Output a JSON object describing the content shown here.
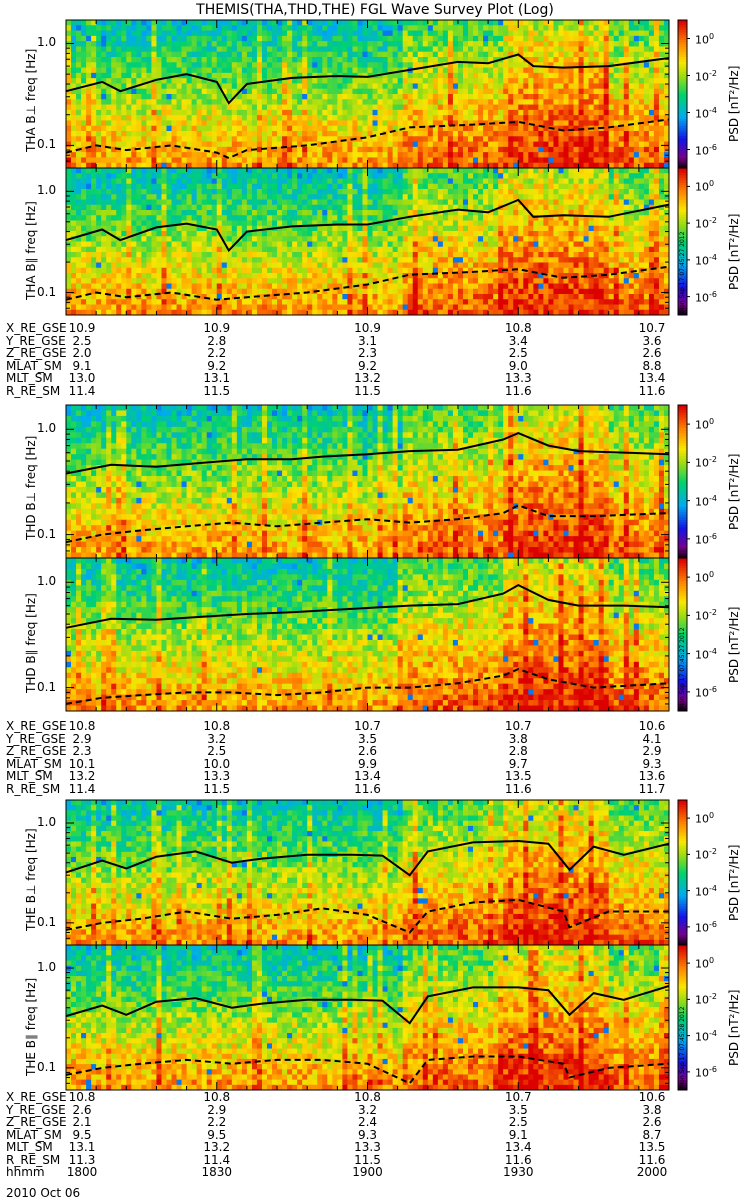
{
  "title": "THEMIS(THA,THD,THE) FGL Wave Survey Plot (Log)",
  "date_label": "2010 Oct 06",
  "colorbar": {
    "label": "PSD [nT²/Hz]",
    "ticks": [
      {
        "base": "10",
        "exp": "0"
      },
      {
        "base": "10",
        "exp": "-2"
      },
      {
        "base": "10",
        "exp": "-4"
      },
      {
        "base": "10",
        "exp": "-6"
      }
    ]
  },
  "freq_ticks": [
    "1.0",
    "0.1"
  ],
  "stamps": [
    "Mon Sep 17 07:45:27 2012",
    "Mon Sep 17 07:45:27 2012",
    "Mon Sep 17 07:45:28 2012"
  ],
  "chart_data": [
    {
      "type": "heatmap",
      "title": "THEMIS(THA,THD,THE) FGL Wave Survey Plot (Log)",
      "ylabel": "THA B⊥ freq [Hz]",
      "yscale": "log",
      "ylim": [
        0.06,
        1.7
      ],
      "xlim": [
        1800,
        2000
      ],
      "zlabel": "PSD [nT²/Hz]",
      "zscale": "log",
      "zlim": [
        1e-07,
        10.0
      ],
      "lines": [
        {
          "style": "solid",
          "x": [
            1800,
            1812,
            1818,
            1830,
            1840,
            1850,
            1854,
            1860,
            1875,
            1890,
            1900,
            1914,
            1930,
            1940,
            1950,
            1955,
            1965,
            1980,
            2000
          ],
          "y": [
            0.34,
            0.42,
            0.34,
            0.44,
            0.5,
            0.42,
            0.26,
            0.4,
            0.46,
            0.48,
            0.47,
            0.55,
            0.66,
            0.64,
            0.78,
            0.6,
            0.58,
            0.6,
            0.72
          ]
        },
        {
          "style": "dashed",
          "x": [
            1800,
            1810,
            1820,
            1835,
            1850,
            1854,
            1860,
            1880,
            1900,
            1914,
            1935,
            1950,
            1965,
            1980,
            2000
          ],
          "y": [
            0.085,
            0.1,
            0.09,
            0.1,
            0.085,
            0.075,
            0.09,
            0.1,
            0.12,
            0.15,
            0.16,
            0.17,
            0.14,
            0.15,
            0.18
          ]
        }
      ]
    },
    {
      "type": "heatmap",
      "ylabel": "THA B∥ freq [Hz]",
      "yscale": "log",
      "ylim": [
        0.06,
        1.7
      ],
      "xlim": [
        1800,
        2000
      ],
      "zlabel": "PSD [nT²/Hz]",
      "zscale": "log",
      "zlim": [
        1e-07,
        10.0
      ],
      "lines": [
        {
          "style": "solid",
          "x": [
            1800,
            1812,
            1818,
            1830,
            1840,
            1850,
            1854,
            1860,
            1875,
            1890,
            1900,
            1914,
            1930,
            1940,
            1950,
            1955,
            1965,
            1980,
            2000
          ],
          "y": [
            0.33,
            0.42,
            0.33,
            0.44,
            0.48,
            0.42,
            0.26,
            0.4,
            0.45,
            0.47,
            0.47,
            0.56,
            0.66,
            0.62,
            0.82,
            0.56,
            0.58,
            0.56,
            0.74
          ]
        },
        {
          "style": "dashed",
          "x": [
            1800,
            1810,
            1820,
            1835,
            1850,
            1860,
            1880,
            1900,
            1914,
            1935,
            1950,
            1965,
            1980,
            2000
          ],
          "y": [
            0.085,
            0.1,
            0.09,
            0.1,
            0.085,
            0.09,
            0.1,
            0.12,
            0.15,
            0.16,
            0.17,
            0.14,
            0.15,
            0.18
          ]
        }
      ]
    },
    {
      "type": "heatmap",
      "ylabel": "THD B⊥ freq [Hz]",
      "yscale": "log",
      "ylim": [
        0.06,
        1.7
      ],
      "xlim": [
        1800,
        2000
      ],
      "zlabel": "PSD [nT²/Hz]",
      "zscale": "log",
      "zlim": [
        1e-07,
        10.0
      ],
      "lines": [
        {
          "style": "solid",
          "x": [
            1800,
            1815,
            1830,
            1845,
            1860,
            1875,
            1885,
            1900,
            1914,
            1930,
            1945,
            1950,
            1960,
            1970,
            1985,
            2000
          ],
          "y": [
            0.38,
            0.46,
            0.44,
            0.48,
            0.52,
            0.52,
            0.55,
            0.58,
            0.62,
            0.64,
            0.8,
            0.92,
            0.7,
            0.62,
            0.6,
            0.58
          ]
        },
        {
          "style": "dashed",
          "x": [
            1800,
            1812,
            1825,
            1840,
            1855,
            1870,
            1885,
            1900,
            1914,
            1930,
            1945,
            1950,
            1960,
            1975,
            2000
          ],
          "y": [
            0.085,
            0.1,
            0.11,
            0.12,
            0.13,
            0.12,
            0.13,
            0.14,
            0.13,
            0.14,
            0.16,
            0.19,
            0.15,
            0.15,
            0.16
          ]
        }
      ]
    },
    {
      "type": "heatmap",
      "ylabel": "THD B∥ freq [Hz]",
      "yscale": "log",
      "ylim": [
        0.06,
        1.7
      ],
      "xlim": [
        1800,
        2000
      ],
      "zlabel": "PSD [nT²/Hz]",
      "zscale": "log",
      "zlim": [
        1e-07,
        10.0
      ],
      "lines": [
        {
          "style": "solid",
          "x": [
            1800,
            1815,
            1830,
            1845,
            1860,
            1875,
            1885,
            1900,
            1914,
            1930,
            1945,
            1950,
            1960,
            1970,
            1985,
            2000
          ],
          "y": [
            0.37,
            0.45,
            0.44,
            0.47,
            0.5,
            0.52,
            0.54,
            0.57,
            0.6,
            0.62,
            0.78,
            0.94,
            0.68,
            0.6,
            0.6,
            0.58
          ]
        },
        {
          "style": "dashed",
          "x": [
            1800,
            1812,
            1825,
            1840,
            1855,
            1870,
            1885,
            1900,
            1914,
            1930,
            1945,
            1950,
            1960,
            1975,
            2000
          ],
          "y": [
            0.07,
            0.08,
            0.085,
            0.09,
            0.09,
            0.085,
            0.09,
            0.1,
            0.1,
            0.11,
            0.13,
            0.15,
            0.12,
            0.1,
            0.11
          ]
        }
      ]
    },
    {
      "type": "heatmap",
      "ylabel": "THE B⊥ freq [Hz]",
      "yscale": "log",
      "ylim": [
        0.06,
        1.7
      ],
      "xlim": [
        1800,
        2000
      ],
      "zlabel": "PSD [nT²/Hz]",
      "zscale": "log",
      "zlim": [
        1e-07,
        10.0
      ],
      "lines": [
        {
          "style": "solid",
          "x": [
            1800,
            1812,
            1820,
            1830,
            1843,
            1855,
            1865,
            1880,
            1895,
            1905,
            1914,
            1920,
            1935,
            1950,
            1960,
            1967,
            1975,
            1985,
            2000
          ],
          "y": [
            0.32,
            0.42,
            0.35,
            0.46,
            0.52,
            0.4,
            0.44,
            0.48,
            0.48,
            0.47,
            0.3,
            0.52,
            0.64,
            0.66,
            0.62,
            0.34,
            0.58,
            0.48,
            0.62
          ]
        },
        {
          "style": "dashed",
          "x": [
            1800,
            1812,
            1825,
            1840,
            1855,
            1870,
            1885,
            1900,
            1914,
            1920,
            1935,
            1950,
            1965,
            1967,
            1980,
            2000
          ],
          "y": [
            0.085,
            0.1,
            0.11,
            0.13,
            0.11,
            0.12,
            0.14,
            0.12,
            0.08,
            0.13,
            0.16,
            0.17,
            0.13,
            0.09,
            0.13,
            0.13
          ]
        }
      ]
    },
    {
      "type": "heatmap",
      "ylabel": "THE B∥ freq [Hz]",
      "yscale": "log",
      "ylim": [
        0.06,
        1.7
      ],
      "xlim": [
        1800,
        2000
      ],
      "zlabel": "PSD [nT²/Hz]",
      "zscale": "log",
      "zlim": [
        1e-07,
        10.0
      ],
      "lines": [
        {
          "style": "solid",
          "x": [
            1800,
            1812,
            1820,
            1830,
            1843,
            1855,
            1865,
            1880,
            1895,
            1905,
            1914,
            1920,
            1935,
            1950,
            1960,
            1967,
            1975,
            1985,
            2000
          ],
          "y": [
            0.33,
            0.42,
            0.34,
            0.46,
            0.5,
            0.4,
            0.44,
            0.48,
            0.48,
            0.47,
            0.28,
            0.52,
            0.64,
            0.64,
            0.6,
            0.34,
            0.56,
            0.48,
            0.66
          ]
        },
        {
          "style": "dashed",
          "x": [
            1800,
            1812,
            1825,
            1840,
            1855,
            1870,
            1885,
            1900,
            1914,
            1920,
            1935,
            1950,
            1965,
            1967,
            1980,
            2000
          ],
          "y": [
            0.085,
            0.1,
            0.11,
            0.12,
            0.11,
            0.12,
            0.12,
            0.11,
            0.07,
            0.12,
            0.13,
            0.13,
            0.11,
            0.08,
            0.1,
            0.11
          ]
        }
      ]
    }
  ],
  "ephemeris": [
    {
      "rows": [
        {
          "label": "X_RE_GSE",
          "values": [
            "10.9",
            "10.9",
            "10.9",
            "10.8",
            "10.7"
          ]
        },
        {
          "label": "Y_RE_GSE",
          "values": [
            "2.5",
            "2.8",
            "3.1",
            "3.4",
            "3.6"
          ]
        },
        {
          "label": "Z_RE_GSE",
          "values": [
            "2.0",
            "2.2",
            "2.3",
            "2.5",
            "2.6"
          ]
        },
        {
          "label": "MLAT_SM",
          "values": [
            "9.1",
            "9.2",
            "9.2",
            "9.0",
            "8.8"
          ]
        },
        {
          "label": "MLT_SM",
          "values": [
            "13.0",
            "13.1",
            "13.2",
            "13.3",
            "13.4"
          ]
        },
        {
          "label": "R_RE_SM",
          "values": [
            "11.4",
            "11.5",
            "11.5",
            "11.6",
            "11.6"
          ]
        }
      ]
    },
    {
      "rows": [
        {
          "label": "X_RE_GSE",
          "values": [
            "10.8",
            "10.8",
            "10.7",
            "10.7",
            "10.6"
          ]
        },
        {
          "label": "Y_RE_GSE",
          "values": [
            "2.9",
            "3.2",
            "3.5",
            "3.8",
            "4.1"
          ]
        },
        {
          "label": "Z_RE_GSE",
          "values": [
            "2.3",
            "2.5",
            "2.6",
            "2.8",
            "2.9"
          ]
        },
        {
          "label": "MLAT_SM",
          "values": [
            "10.1",
            "10.0",
            "9.9",
            "9.7",
            "9.3"
          ]
        },
        {
          "label": "MLT_SM",
          "values": [
            "13.2",
            "13.3",
            "13.4",
            "13.5",
            "13.6"
          ]
        },
        {
          "label": "R_RE_SM",
          "values": [
            "11.4",
            "11.5",
            "11.6",
            "11.6",
            "11.7"
          ]
        }
      ]
    },
    {
      "rows": [
        {
          "label": "X_RE_GSE",
          "values": [
            "10.8",
            "10.8",
            "10.8",
            "10.7",
            "10.6"
          ]
        },
        {
          "label": "Y_RE_GSE",
          "values": [
            "2.6",
            "2.9",
            "3.2",
            "3.5",
            "3.8"
          ]
        },
        {
          "label": "Z_RE_GSE",
          "values": [
            "2.1",
            "2.2",
            "2.4",
            "2.5",
            "2.6"
          ]
        },
        {
          "label": "MLAT_SM",
          "values": [
            "9.5",
            "9.5",
            "9.3",
            "9.1",
            "8.7"
          ]
        },
        {
          "label": "MLT_SM",
          "values": [
            "13.1",
            "13.2",
            "13.3",
            "13.4",
            "13.5"
          ]
        },
        {
          "label": "R_RE_SM",
          "values": [
            "11.3",
            "11.4",
            "11.5",
            "11.6",
            "11.6"
          ]
        },
        {
          "label": "hhmm",
          "values": [
            "1800",
            "1830",
            "1900",
            "1930",
            "2000"
          ]
        }
      ]
    }
  ]
}
